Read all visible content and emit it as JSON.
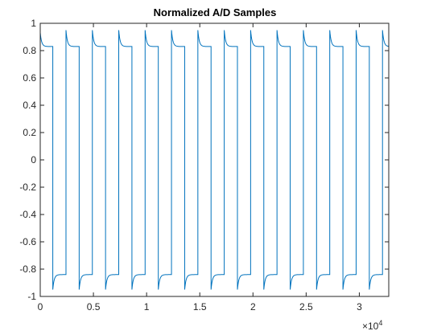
{
  "chart_data": {
    "type": "line",
    "title": "Normalized A/D Samples",
    "xlabel": "",
    "ylabel": "",
    "xlim": [
      0,
      32768
    ],
    "ylim": [
      -1,
      1
    ],
    "x_exponent_label": "×10",
    "x_exponent_power": "4",
    "x_ticks": [
      0,
      5000,
      10000,
      15000,
      20000,
      25000,
      30000
    ],
    "x_tick_labels": [
      "0",
      "0.5",
      "1",
      "1.5",
      "2",
      "2.5",
      "3"
    ],
    "y_ticks": [
      -1,
      -0.8,
      -0.6,
      -0.4,
      -0.2,
      0,
      0.2,
      0.4,
      0.6,
      0.8,
      1
    ],
    "y_tick_labels": [
      "-1",
      "-0.8",
      "-0.6",
      "-0.4",
      "-0.2",
      "0",
      "0.2",
      "0.4",
      "0.6",
      "0.8",
      "1"
    ],
    "grid": false,
    "box": true,
    "series_color": "#0072BD",
    "series": [
      {
        "waveform": "square wave with overshoot at each transition",
        "period": 2480,
        "first_rising_edge": 1180,
        "first_falling_edge": 2420,
        "high_level": 0.83,
        "low_level": -0.84,
        "overshoot_peak_high": 0.95,
        "overshoot_peak_low": -0.95,
        "initial_high": 0.95,
        "initial_low": -0.94
      }
    ]
  }
}
